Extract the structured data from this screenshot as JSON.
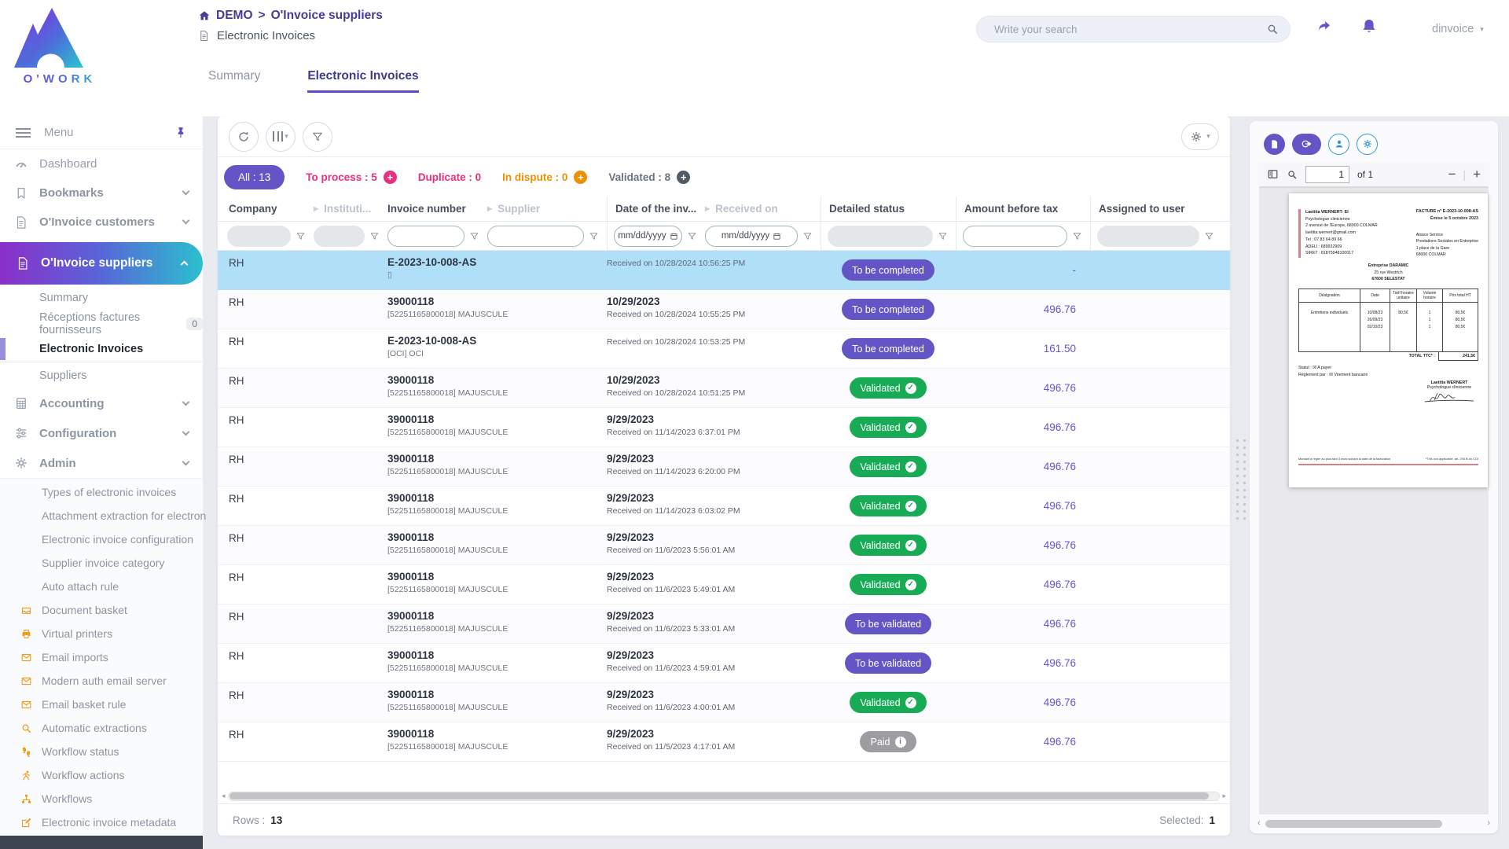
{
  "brand": {
    "logo_text": "O'WORK"
  },
  "header": {
    "breadcrumb": {
      "root": "DEMO",
      "sep": ">",
      "section": "O'Invoice suppliers",
      "page": "Electronic Invoices"
    },
    "search": {
      "placeholder": "Write your search"
    },
    "user": {
      "name": "dinvoice"
    }
  },
  "tabs": [
    {
      "label": "Summary"
    },
    {
      "label": "Electronic Invoices"
    }
  ],
  "sidebar": {
    "menu_label": "Menu",
    "top": [
      {
        "label": "Dashboard",
        "icon": "gauge"
      },
      {
        "label": "Bookmarks",
        "icon": "bookmark"
      },
      {
        "label": "O'Invoice customers",
        "icon": "invoice"
      },
      {
        "label": "O'Invoice suppliers",
        "icon": "invoice"
      }
    ],
    "suppliers_submenu": [
      {
        "label": "Summary"
      },
      {
        "label": "Réceptions factures fournisseurs",
        "badge": "0"
      },
      {
        "label": "Electronic Invoices",
        "active": true
      },
      {
        "label": "Suppliers"
      }
    ],
    "sections": [
      {
        "label": "Accounting",
        "icon": "calculator"
      },
      {
        "label": "Configuration",
        "icon": "sliders"
      },
      {
        "label": "Admin",
        "icon": "gear"
      }
    ],
    "admin_submenu": [
      {
        "label": "Types of electronic invoices",
        "icon": "file"
      },
      {
        "label": "Attachment extraction for electron",
        "icon": "file"
      },
      {
        "label": "Electronic invoice configuration",
        "icon": "file"
      },
      {
        "label": "Supplier invoice category",
        "icon": "file"
      },
      {
        "label": "Auto attach rule",
        "icon": "file"
      },
      {
        "label": "Document basket",
        "icon": "inbox"
      },
      {
        "label": "Virtual printers",
        "icon": "printer"
      },
      {
        "label": "Email imports",
        "icon": "mail"
      },
      {
        "label": "Modern auth email server",
        "icon": "mail"
      },
      {
        "label": "Email basket rule",
        "icon": "mail"
      },
      {
        "label": "Automatic extractions",
        "icon": "search"
      },
      {
        "label": "Workflow status",
        "icon": "shoe"
      },
      {
        "label": "Workflow actions",
        "icon": "run"
      },
      {
        "label": "Workflows",
        "icon": "sitemap"
      },
      {
        "label": "Electronic invoice metadata",
        "icon": "edit"
      }
    ]
  },
  "filters": [
    {
      "label": "All : 13",
      "style": "active"
    },
    {
      "label": "To process : 5",
      "style": "pink",
      "plus": "pink"
    },
    {
      "label": "Duplicate : 0",
      "style": "pink"
    },
    {
      "label": "In dispute : 0",
      "style": "orange",
      "plus": "orange"
    },
    {
      "label": "Validated : 8",
      "style": "gray",
      "plus": "dark"
    }
  ],
  "table": {
    "columns": [
      {
        "label": "Company",
        "muted": false,
        "filter": "gray"
      },
      {
        "label": "Instituti...",
        "muted": true,
        "filter": "gray"
      },
      {
        "label": "Invoice number",
        "muted": false,
        "filter": "text"
      },
      {
        "label": "Supplier",
        "muted": true,
        "filter": "text"
      },
      {
        "label": "Date of the inv...",
        "muted": false,
        "filter": "date"
      },
      {
        "label": "Received on",
        "muted": true,
        "filter": "date"
      },
      {
        "label": "Detailed status",
        "muted": false,
        "filter": "gray"
      },
      {
        "label": "Amount before tax",
        "muted": false,
        "filter": "text"
      },
      {
        "label": "Assigned to user",
        "muted": false,
        "filter": "gray"
      }
    ],
    "date_placeholder": "mm/dd/yyyy",
    "rows": [
      {
        "company": "RH",
        "invoice": "E-2023-10-008-AS",
        "invoice_sub": "▯",
        "date": "",
        "received": "Received on 10/28/2024 10:56:25 PM",
        "status": "To be completed",
        "status_type": "purple",
        "amount": "-",
        "selected": true
      },
      {
        "company": "RH",
        "invoice": "39000118",
        "invoice_sub": "[52251165800018] MAJUSCULE",
        "date": "10/29/2023",
        "received": "Received on 10/28/2024 10:55:25 PM",
        "status": "To be completed",
        "status_type": "purple",
        "amount": "496.76"
      },
      {
        "company": "RH",
        "invoice": "E-2023-10-008-AS",
        "invoice_sub": "[OCI] OCI",
        "date": "",
        "received": "Received on 10/28/2024 10:53:25 PM",
        "status": "To be completed",
        "status_type": "purple",
        "amount": "161.50"
      },
      {
        "company": "RH",
        "invoice": "39000118",
        "invoice_sub": "[52251165800018] MAJUSCULE",
        "date": "10/29/2023",
        "received": "Received on 10/28/2024 10:51:25 PM",
        "status": "Validated",
        "status_type": "green",
        "amount": "496.76"
      },
      {
        "company": "RH",
        "invoice": "39000118",
        "invoice_sub": "[52251165800018] MAJUSCULE",
        "date": "9/29/2023",
        "received": "Received on 11/14/2023 6:37:01 PM",
        "status": "Validated",
        "status_type": "green",
        "amount": "496.76"
      },
      {
        "company": "RH",
        "invoice": "39000118",
        "invoice_sub": "[52251165800018] MAJUSCULE",
        "date": "9/29/2023",
        "received": "Received on 11/14/2023 6:20:00 PM",
        "status": "Validated",
        "status_type": "green",
        "amount": "496.76"
      },
      {
        "company": "RH",
        "invoice": "39000118",
        "invoice_sub": "[52251165800018] MAJUSCULE",
        "date": "9/29/2023",
        "received": "Received on 11/14/2023 6:03:02 PM",
        "status": "Validated",
        "status_type": "green",
        "amount": "496.76"
      },
      {
        "company": "RH",
        "invoice": "39000118",
        "invoice_sub": "[52251165800018] MAJUSCULE",
        "date": "9/29/2023",
        "received": "Received on 11/6/2023 5:56:01 AM",
        "status": "Validated",
        "status_type": "green",
        "amount": "496.76"
      },
      {
        "company": "RH",
        "invoice": "39000118",
        "invoice_sub": "[52251165800018] MAJUSCULE",
        "date": "9/29/2023",
        "received": "Received on 11/6/2023 5:49:01 AM",
        "status": "Validated",
        "status_type": "green",
        "amount": "496.76"
      },
      {
        "company": "RH",
        "invoice": "39000118",
        "invoice_sub": "[52251165800018] MAJUSCULE",
        "date": "9/29/2023",
        "received": "Received on 11/6/2023 5:33:01 AM",
        "status": "To be validated",
        "status_type": "purple",
        "amount": "496.76"
      },
      {
        "company": "RH",
        "invoice": "39000118",
        "invoice_sub": "[52251165800018] MAJUSCULE",
        "date": "9/29/2023",
        "received": "Received on 11/6/2023 4:59:01 AM",
        "status": "To be validated",
        "status_type": "purple",
        "amount": "496.76"
      },
      {
        "company": "RH",
        "invoice": "39000118",
        "invoice_sub": "[52251165800018] MAJUSCULE",
        "date": "9/29/2023",
        "received": "Received on 11/6/2023 4:00:01 AM",
        "status": "Validated",
        "status_type": "green",
        "amount": "496.76"
      },
      {
        "company": "RH",
        "invoice": "39000118",
        "invoice_sub": "[52251165800018] MAJUSCULE",
        "date": "9/29/2023",
        "received": "Received on 11/5/2023 4:17:01 AM",
        "status": "Paid",
        "status_type": "gray",
        "amount": "496.76"
      }
    ],
    "footer": {
      "rows_label": "Rows :",
      "rows_value": "13",
      "selected_label": "Selected:",
      "selected_value": "1"
    }
  },
  "viewer": {
    "toolbar": {
      "page_value": "1",
      "of_label": "of 1"
    },
    "invoice": {
      "from": [
        "Laetitia WERNERT- EI",
        "Psychologue clinicienne",
        "2 avenue de l'Europe, 68000 COLMAR",
        "laetitia.wernert@gmail.com",
        "Tel : 07 83 64 89 66",
        "ADELI : 689932909",
        "SIRET : 81875948100017"
      ],
      "title": "FACTURE n° E-2023-10-008-AS",
      "issued": "Émise le 5 octobre 2023",
      "to": [
        "Alsace Service",
        "Prestations Sociales en Entreprise",
        "1 place de la Gare",
        "68000 COLMAR"
      ],
      "client": [
        "Entreprise DARAMIC",
        "25 rue Westrich",
        "67600 SELESTAT"
      ],
      "table": {
        "headers": [
          "Désignation",
          "Date",
          "Tarif horaire unitaire",
          "Volume horaire",
          "Prix total HT"
        ],
        "designation": "Entretiens individuels",
        "dates": [
          "10/08/23",
          "26/09/23",
          "02/10/23"
        ],
        "unit_price": "80,5€",
        "volumes": [
          "1",
          "1",
          "1"
        ],
        "totals": [
          "80,5€",
          "80,5€",
          "80,5€"
        ],
        "total_label": "TOTAL TTC* :",
        "total_value": "241,5€"
      },
      "status_line": "Statut : ☒ A payer",
      "payment_line": "Règlement par : ☒ Virement bancaire",
      "signer": "Laetitia WERNERT",
      "signer_title": "Psychologue clinicienne",
      "footer_left": "Montant à régler au plus tard 3 mois suivant la date de la facturation",
      "footer_right": "*TVA non applicable, art. 293 B du CGI"
    }
  },
  "colors": {
    "accent_purple": "#6355c6",
    "green": "#17ab56",
    "pink": "#e82f80",
    "orange": "#ef9003",
    "selected_row": "#b0e0f8"
  }
}
